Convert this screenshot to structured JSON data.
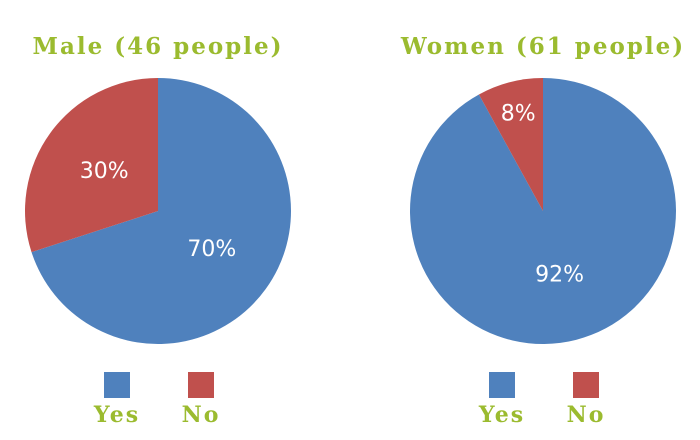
{
  "chart_data": [
    {
      "type": "pie",
      "title": "Male (46 people)",
      "categories": [
        "Yes",
        "No"
      ],
      "values": [
        70,
        30
      ],
      "value_labels": [
        "70%",
        "30%"
      ],
      "colors": [
        "#4f81bd",
        "#c0504d"
      ],
      "legend": "bottom"
    },
    {
      "type": "pie",
      "title": "Women (61 people)",
      "categories": [
        "Yes",
        "No"
      ],
      "values": [
        92,
        8
      ],
      "value_labels": [
        "92%",
        "8%"
      ],
      "colors": [
        "#4f81bd",
        "#c0504d"
      ],
      "legend": "bottom"
    }
  ]
}
